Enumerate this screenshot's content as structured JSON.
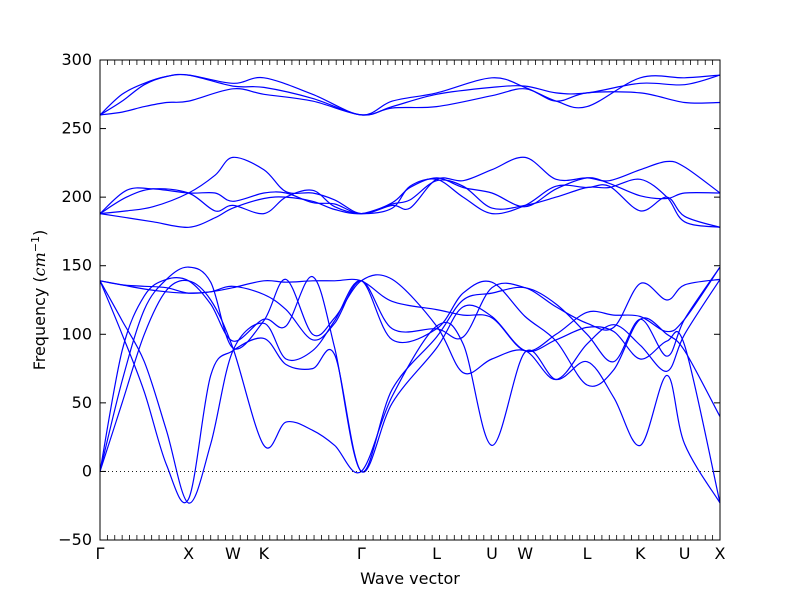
{
  "chart_data": {
    "type": "line",
    "title": "",
    "xlabel": "Wave vector",
    "ylabel": {
      "text": "Frequency (",
      "unit": "cm",
      "exp": "−1",
      "close": ")"
    },
    "ylim": [
      -50,
      300
    ],
    "yticks": [
      -50,
      0,
      50,
      100,
      150,
      200,
      250,
      300
    ],
    "ytick_labels": [
      "−50",
      "0",
      "50",
      "100",
      "150",
      "200",
      "250",
      "300"
    ],
    "xlim": [
      0,
      14
    ],
    "high_symmetry_points": [
      {
        "label": "Γ",
        "x": 0
      },
      {
        "label": "X",
        "x": 2
      },
      {
        "label": "W",
        "x": 3
      },
      {
        "label": "K",
        "x": 3.7
      },
      {
        "label": "Γ",
        "x": 5.9
      },
      {
        "label": "L",
        "x": 7.6
      },
      {
        "label": "U",
        "x": 8.85
      },
      {
        "label": "W",
        "x": 9.6
      },
      {
        "label": "L",
        "x": 11
      },
      {
        "label": "K",
        "x": 12.2
      },
      {
        "label": "U",
        "x": 13.2
      },
      {
        "label": "X",
        "x": 14
      }
    ],
    "zero_line": {
      "y": 0,
      "style": "dotted"
    },
    "grid": false,
    "legend": "none",
    "line_color": "#0000ff",
    "series": [
      {
        "x": [
          0,
          0.5,
          1,
          1.5,
          2,
          3,
          3.7,
          4.8,
          5.9,
          6.6,
          7.6,
          8.85,
          9.6,
          10.3,
          11,
          12.2,
          13.2,
          14
        ],
        "values": [
          260,
          262,
          266,
          269,
          270,
          279,
          275,
          270,
          260,
          265,
          266,
          274,
          279,
          270,
          276,
          276,
          269,
          269
        ]
      },
      {
        "x": [
          0,
          0.5,
          1,
          1.5,
          2,
          3,
          3.7,
          4.8,
          5.9,
          6.6,
          7.6,
          8.85,
          9.6,
          10.3,
          11,
          12.2,
          13.2,
          14
        ],
        "values": [
          260,
          275,
          283,
          288,
          289,
          281,
          280,
          272,
          260,
          266,
          275,
          280,
          281,
          276,
          276,
          283,
          282,
          289
        ]
      },
      {
        "x": [
          0,
          0.5,
          1,
          1.5,
          2,
          3,
          3.7,
          4.8,
          5.9,
          6.6,
          7.6,
          8.85,
          9.6,
          10.3,
          11,
          12.2,
          13.2,
          14
        ],
        "values": [
          260,
          270,
          282,
          288,
          289,
          283,
          287,
          275,
          260,
          270,
          276,
          287,
          280,
          270,
          266,
          287,
          287,
          289
        ]
      },
      {
        "x": [
          0,
          0.6,
          1.2,
          2,
          2.6,
          3,
          3.7,
          4.2,
          4.8,
          5.3,
          5.9,
          6.6,
          7,
          7.6,
          8.2,
          8.85,
          9.6,
          10.3,
          11,
          11.5,
          12.2,
          12.8,
          13.2,
          14
        ],
        "values": [
          188,
          190,
          193,
          203,
          216,
          229,
          220,
          204,
          203,
          198,
          188,
          194,
          192,
          213,
          212,
          220,
          229,
          213,
          214,
          212,
          220,
          226,
          222,
          203
        ]
      },
      {
        "x": [
          0,
          0.6,
          1.2,
          2,
          2.6,
          3,
          3.7,
          4.2,
          4.8,
          5.3,
          5.9,
          6.6,
          7,
          7.6,
          8.2,
          8.85,
          9.6,
          10.3,
          11,
          11.5,
          12.2,
          12.8,
          13.2,
          14
        ],
        "values": [
          188,
          205,
          206,
          203,
          203,
          197,
          203,
          203,
          196,
          195,
          188,
          196,
          207,
          214,
          207,
          203,
          193,
          206,
          214,
          210,
          201,
          199,
          203,
          203
        ]
      },
      {
        "x": [
          0,
          0.6,
          1.2,
          2,
          2.6,
          3,
          3.7,
          4.2,
          4.8,
          5.3,
          5.9,
          6.6,
          7,
          7.6,
          8.2,
          8.85,
          9.6,
          10.3,
          11,
          11.5,
          12.2,
          12.8,
          13.2,
          14
        ],
        "values": [
          188,
          200,
          206,
          203,
          190,
          194,
          188,
          200,
          205,
          193,
          188,
          192,
          208,
          213,
          200,
          188,
          194,
          208,
          207,
          208,
          190,
          200,
          186,
          178
        ]
      },
      {
        "x": [
          0,
          0.6,
          1.2,
          2,
          2.6,
          3,
          3.7,
          4.2,
          4.8,
          5.3,
          5.9,
          6.6,
          7,
          7.6,
          8.2,
          8.85,
          9.6,
          10.3,
          11,
          11.5,
          12.2,
          12.8,
          13.2,
          14
        ],
        "values": [
          188,
          185,
          182,
          178,
          185,
          192,
          199,
          200,
          197,
          191,
          188,
          195,
          198,
          212,
          208,
          192,
          194,
          200,
          207,
          207,
          213,
          200,
          182,
          178
        ]
      },
      {
        "x": [
          0,
          0.5,
          1,
          1.5,
          2,
          2.5,
          3,
          3.7,
          4.2,
          4.8,
          5.3,
          5.9,
          6.6,
          7.6,
          8.2,
          8.85,
          9.6,
          10.3,
          11,
          11.6,
          12.2,
          12.8,
          13.2,
          14
        ],
        "values": [
          139,
          136,
          133,
          131,
          130,
          131,
          134,
          139,
          138,
          139,
          139,
          139,
          124,
          118,
          114,
          112,
          88,
          100,
          116,
          114,
          113,
          102,
          111,
          149
        ]
      },
      {
        "x": [
          0,
          0.5,
          1,
          1.5,
          2,
          2.5,
          3,
          3.7,
          4.2,
          4.8,
          5.3,
          5.9,
          6.6,
          7.6,
          8.2,
          8.85,
          9.6,
          10.3,
          11,
          11.6,
          12.2,
          12.8,
          13.2,
          14
        ],
        "values": [
          139,
          136,
          135,
          134,
          130,
          131,
          135,
          129,
          118,
          96,
          108,
          139,
          104,
          104,
          98,
          134,
          134,
          120,
          108,
          105,
          137,
          125,
          136,
          140
        ]
      },
      {
        "x": [
          0,
          0.5,
          1,
          1.5,
          2,
          2.5,
          3,
          3.7,
          4.2,
          4.8,
          5.3,
          5.9,
          6.6,
          7.6,
          8.2,
          8.85,
          9.6,
          10.3,
          11,
          11.6,
          12.2,
          12.8,
          13.2,
          14
        ],
        "values": [
          0,
          66,
          118,
          140,
          149,
          138,
          90,
          110,
          140,
          100,
          112,
          139,
          140,
          106,
          72,
          82,
          88,
          67,
          93,
          107,
          92,
          73,
          100,
          140
        ]
      },
      {
        "x": [
          0,
          0.5,
          1,
          1.5,
          2,
          2.5,
          3,
          3.7,
          4.2,
          4.8,
          5.3,
          5.9,
          6.6,
          7.6,
          8.2,
          8.85,
          9.6,
          10.3,
          11,
          11.6,
          12.2,
          12.8,
          13.2,
          14
        ],
        "values": [
          139,
          110,
          80,
          30,
          -23,
          20,
          88,
          108,
          82,
          88,
          110,
          139,
          96,
          104,
          130,
          138,
          113,
          95,
          63,
          74,
          111,
          100,
          88,
          40
        ]
      },
      {
        "x": [
          0,
          0.5,
          1,
          1.5,
          2,
          2.5,
          3,
          3.7,
          4.2,
          4.8,
          5.3,
          5.9,
          6.6,
          7.6,
          8.2,
          8.85,
          9.6,
          10.3,
          11,
          11.6,
          12.2,
          12.8,
          13.2,
          14
        ],
        "values": [
          0,
          50,
          100,
          132,
          139,
          125,
          90,
          19,
          36,
          30,
          19,
          0,
          55,
          106,
          93,
          19,
          87,
          67,
          80,
          54,
          19,
          70,
          20,
          -23
        ]
      },
      {
        "x": [
          0,
          0.5,
          1,
          1.5,
          2,
          2.5,
          3,
          3.7,
          4.2,
          4.8,
          5.3,
          5.9,
          6.6,
          7.6,
          8.2,
          8.85,
          9.6,
          10.3,
          11,
          11.6,
          12.2,
          12.8,
          13.2,
          14
        ],
        "values": [
          139,
          100,
          58,
          5,
          -20,
          70,
          88,
          97,
          78,
          75,
          85,
          0,
          50,
          90,
          120,
          113,
          88,
          96,
          105,
          102,
          82,
          95,
          92,
          -23
        ]
      },
      {
        "x": [
          0,
          0.5,
          1,
          1.5,
          2,
          2.5,
          3,
          3.7,
          4.2,
          4.8,
          5.3,
          5.9,
          6.6,
          7.6,
          8.2,
          8.85,
          9.6,
          10.3,
          11,
          11.6,
          12.2,
          12.8,
          13.2,
          14
        ],
        "values": [
          0,
          88,
          128,
          140,
          139,
          122,
          95,
          111,
          106,
          142,
          90,
          0,
          60,
          98,
          125,
          130,
          134,
          122,
          100,
          80,
          111,
          84,
          111,
          149
        ]
      }
    ]
  }
}
